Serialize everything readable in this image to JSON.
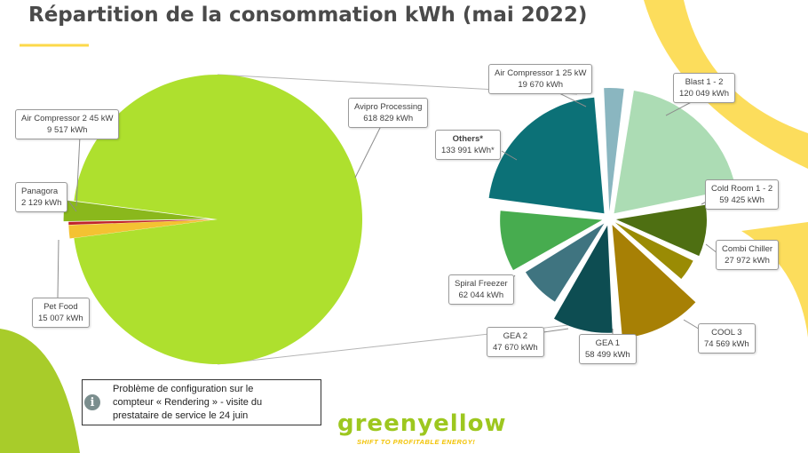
{
  "page": {
    "title": "Répartition de la consommation kWh (mai 2022)"
  },
  "note": {
    "icon": "info-icon",
    "text": "Problème de configuration sur le\ncompteur « Rendering » - visite du\nprestataire de service le 24 juin"
  },
  "logo": {
    "word": "greenyellow",
    "tagline": "SHIFT TO PROFITABLE ENERGY!"
  },
  "colors": {
    "title": "#4a4a4a",
    "accent_yellow": "#fcd94a",
    "accent_green": "#9dc71f"
  },
  "chart_data": [
    {
      "type": "pie",
      "slices": [
        {
          "key": "avipro",
          "name": "Avipro Processing",
          "value": 618829,
          "unit": "kWh",
          "value_label": "618 829 kWh",
          "color": "#aee02e"
        },
        {
          "key": "pet_food",
          "name": "Pet Food",
          "value": 15007,
          "unit": "kWh",
          "value_label": "15 007 kWh",
          "color": "#8ab81c"
        },
        {
          "key": "panagora",
          "name": "Panagora",
          "value": 2129,
          "unit": "kWh",
          "value_label": "2 129 kWh",
          "color": "#c0242b"
        },
        {
          "key": "air_comp_2",
          "name": "Air Compressor 2 45 kW",
          "value": 9517,
          "unit": "kWh",
          "value_label": "9 517 kWh",
          "color": "#f4c232"
        }
      ]
    },
    {
      "type": "pie",
      "slices": [
        {
          "key": "blast",
          "name": "Blast 1 - 2",
          "value": 120049,
          "unit": "kWh",
          "value_label": "120 049 kWh",
          "color": "#acdcb4"
        },
        {
          "key": "cold_room",
          "name": "Cold Room 1 - 2",
          "value": 59425,
          "unit": "kWh",
          "value_label": "59 425 kWh",
          "color": "#4e6f12"
        },
        {
          "key": "combi",
          "name": "Combi Chiller",
          "value": 27972,
          "unit": "kWh",
          "value_label": "27 972 kWh",
          "color": "#9a8b04"
        },
        {
          "key": "cool3",
          "name": "COOL 3",
          "value": 74569,
          "unit": "kWh",
          "value_label": "74 569 kWh",
          "color": "#a78005"
        },
        {
          "key": "gea1",
          "name": "GEA 1",
          "value": 58499,
          "unit": "kWh",
          "value_label": "58 499 kWh",
          "color": "#0d4d52"
        },
        {
          "key": "gea2",
          "name": "GEA 2",
          "value": 47670,
          "unit": "kWh",
          "value_label": "47 670 kWh",
          "color": "#3f7480"
        },
        {
          "key": "spiral",
          "name": "Spiral Freezer",
          "value": 62044,
          "unit": "kWh",
          "value_label": "62 044 kWh",
          "color": "#47ac4f"
        },
        {
          "key": "others",
          "name": "Others*",
          "value": 133991,
          "unit": "kWh",
          "value_label": "133 991 kWh*",
          "color": "#0c7177",
          "bold": true
        },
        {
          "key": "air_comp_1",
          "name": "Air Compressor 1 25 kW",
          "value": 19670,
          "unit": "kWh",
          "value_label": "19 670 kWh",
          "color": "#8ab6c0"
        }
      ]
    }
  ]
}
